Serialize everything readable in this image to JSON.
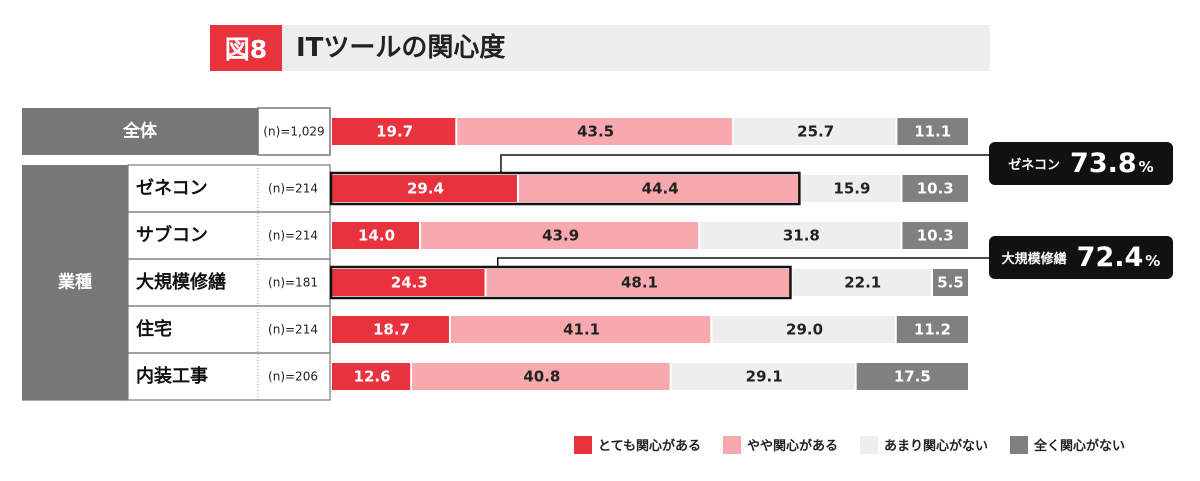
{
  "title": {
    "badge": "図8",
    "text": "ITツールの関心度"
  },
  "group_label": "業種",
  "chart_data": {
    "type": "bar",
    "stacked": true,
    "orientation": "horizontal",
    "categories": [
      "全体",
      "ゼネコン",
      "サブコン",
      "大規模修繕",
      "住宅",
      "内装工事"
    ],
    "n_labels": [
      "(n)=1,029",
      "(n)=214",
      "(n)=214",
      "(n)=181",
      "(n)=214",
      "(n)=206"
    ],
    "series": [
      {
        "name": "とても関心がある",
        "color": "#e8333f",
        "label_color": "#ffffff",
        "values": [
          19.7,
          29.4,
          14.0,
          24.3,
          18.7,
          12.6
        ]
      },
      {
        "name": "やや関心がある",
        "color": "#f7a9ad",
        "label_color": "#222222",
        "values": [
          43.5,
          44.4,
          43.9,
          48.1,
          41.1,
          40.8
        ]
      },
      {
        "name": "あまり関心がない",
        "color": "#eeeeee",
        "label_color": "#222222",
        "values": [
          25.7,
          15.9,
          31.8,
          22.1,
          29.0,
          29.1
        ]
      },
      {
        "name": "全く関心がない",
        "color": "#808080",
        "label_color": "#ffffff",
        "values": [
          11.1,
          10.3,
          10.3,
          5.5,
          11.2,
          17.5
        ]
      }
    ],
    "highlighted_rows": [
      1,
      3
    ],
    "xlim": [
      0,
      100
    ]
  },
  "callouts": [
    {
      "name": "ゼネコン",
      "value": "73.8",
      "unit": "%"
    },
    {
      "name": "大規模修繕",
      "value": "72.4",
      "unit": "%"
    }
  ]
}
